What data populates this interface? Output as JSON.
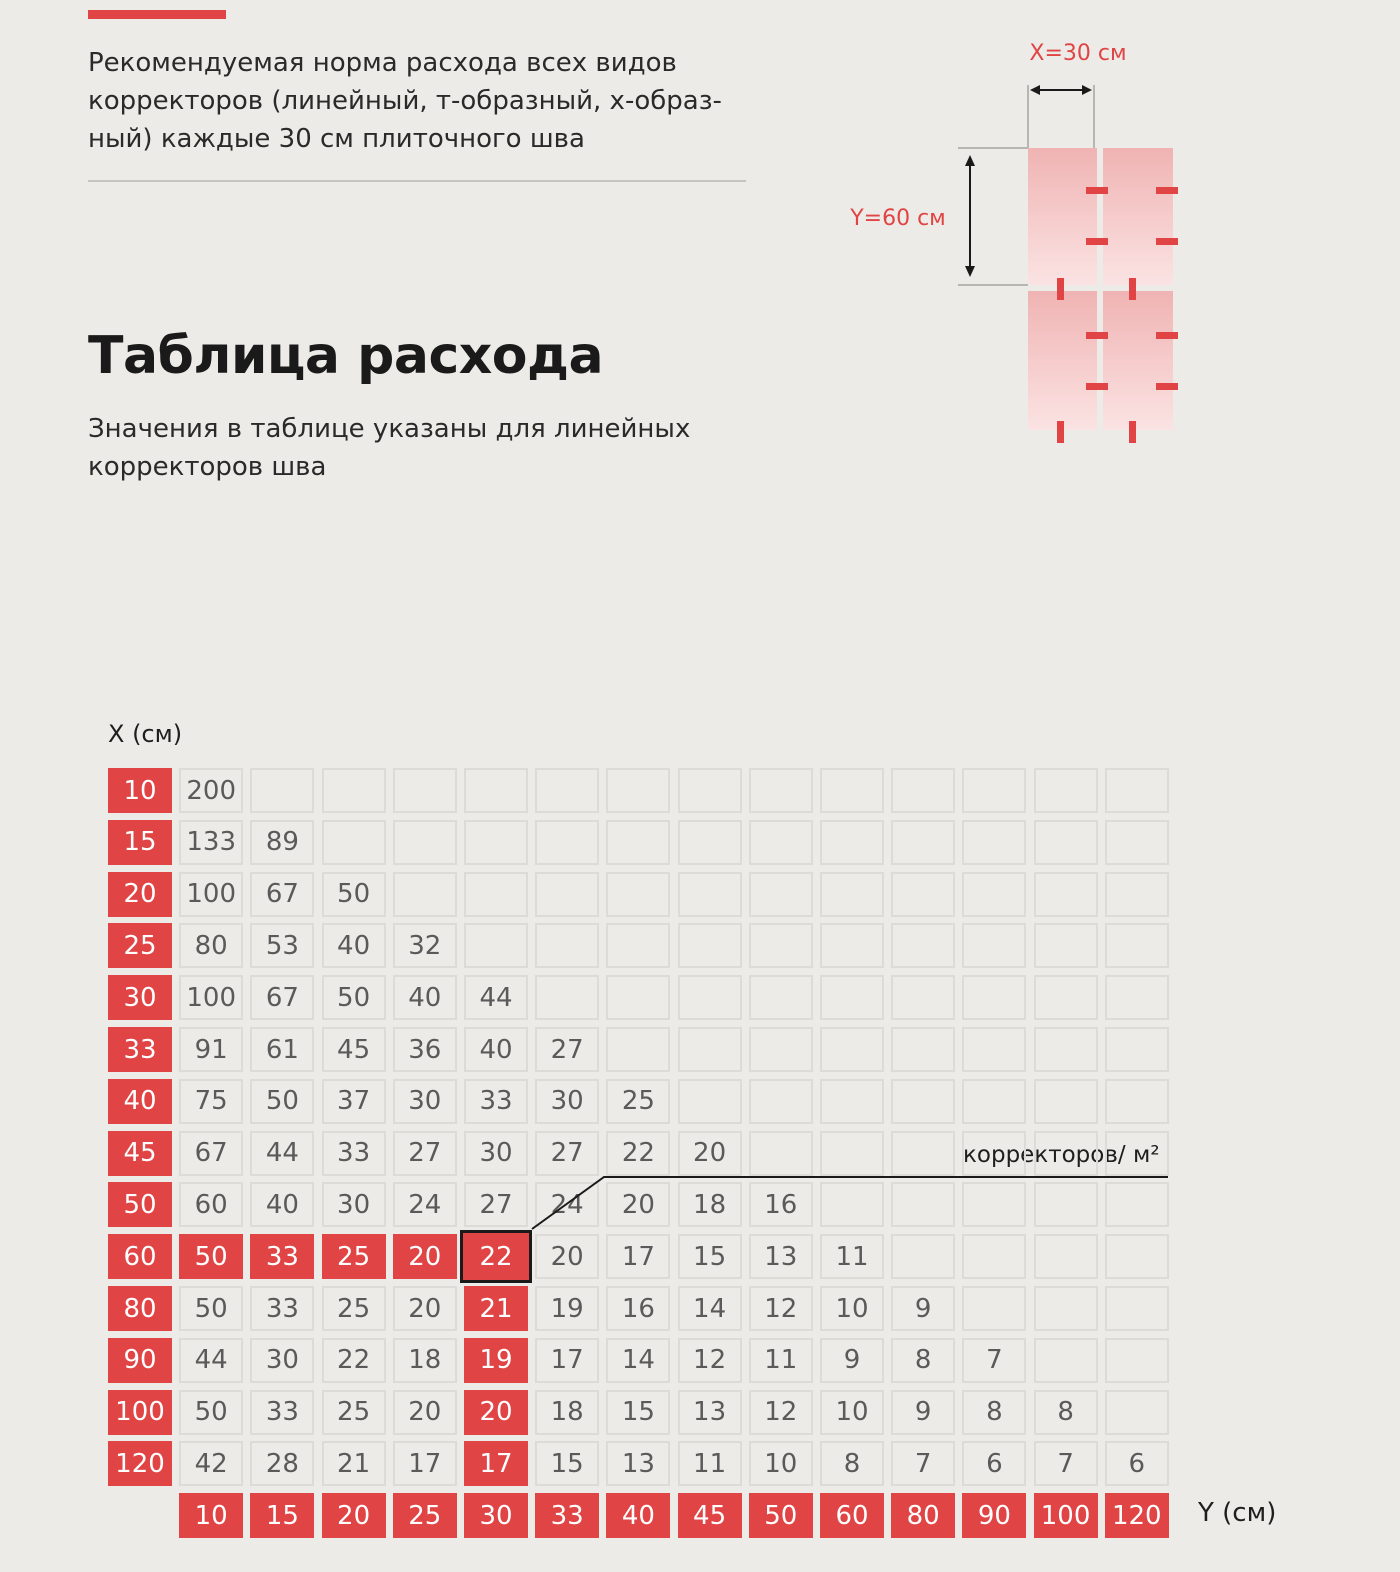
{
  "intro": {
    "text": "Рекомендуемая норма расхода всех видов корректоров (линейный, т-образный, х-образ-ный) каждые 30 см плиточного шва"
  },
  "diagram": {
    "x_label": "X=30 см",
    "y_label": "Y=60 см",
    "accent": "#e04444",
    "tile_color": "#f2b9b9"
  },
  "header": {
    "title": "Таблица расхода",
    "subtitle": "Значения в таблице указаны для линейных корректоров шва"
  },
  "table": {
    "x_axis_label": "X (см)",
    "y_axis_label": "Y (см)",
    "unit_label": "корректоров/ м²",
    "row_headers": [
      "10",
      "15",
      "20",
      "25",
      "30",
      "33",
      "40",
      "45",
      "50",
      "60",
      "80",
      "90",
      "100",
      "120"
    ],
    "col_headers": [
      "10",
      "15",
      "20",
      "25",
      "30",
      "33",
      "40",
      "45",
      "50",
      "60",
      "80",
      "90",
      "100",
      "120"
    ],
    "rows": [
      [
        "200"
      ],
      [
        "133",
        "89"
      ],
      [
        "100",
        "67",
        "50"
      ],
      [
        "80",
        "53",
        "40",
        "32"
      ],
      [
        "100",
        "67",
        "50",
        "40",
        "44"
      ],
      [
        "91",
        "61",
        "45",
        "36",
        "40",
        "27"
      ],
      [
        "75",
        "50",
        "37",
        "30",
        "33",
        "30",
        "25"
      ],
      [
        "67",
        "44",
        "33",
        "27",
        "30",
        "27",
        "22",
        "20"
      ],
      [
        "60",
        "40",
        "30",
        "24",
        "27",
        "24",
        "20",
        "18",
        "16"
      ],
      [
        "50",
        "33",
        "25",
        "20",
        "22",
        "20",
        "17",
        "15",
        "13",
        "11"
      ],
      [
        "50",
        "33",
        "25",
        "20",
        "21",
        "19",
        "16",
        "14",
        "12",
        "10",
        "9"
      ],
      [
        "44",
        "30",
        "22",
        "18",
        "19",
        "17",
        "14",
        "12",
        "11",
        "9",
        "8",
        "7"
      ],
      [
        "50",
        "33",
        "25",
        "20",
        "20",
        "18",
        "15",
        "13",
        "12",
        "10",
        "9",
        "8",
        "8"
      ],
      [
        "42",
        "28",
        "21",
        "17",
        "17",
        "15",
        "13",
        "11",
        "10",
        "8",
        "7",
        "6",
        "7",
        "6"
      ]
    ],
    "highlight_row": 9,
    "highlight_col": 4,
    "accent": "#e04444"
  }
}
